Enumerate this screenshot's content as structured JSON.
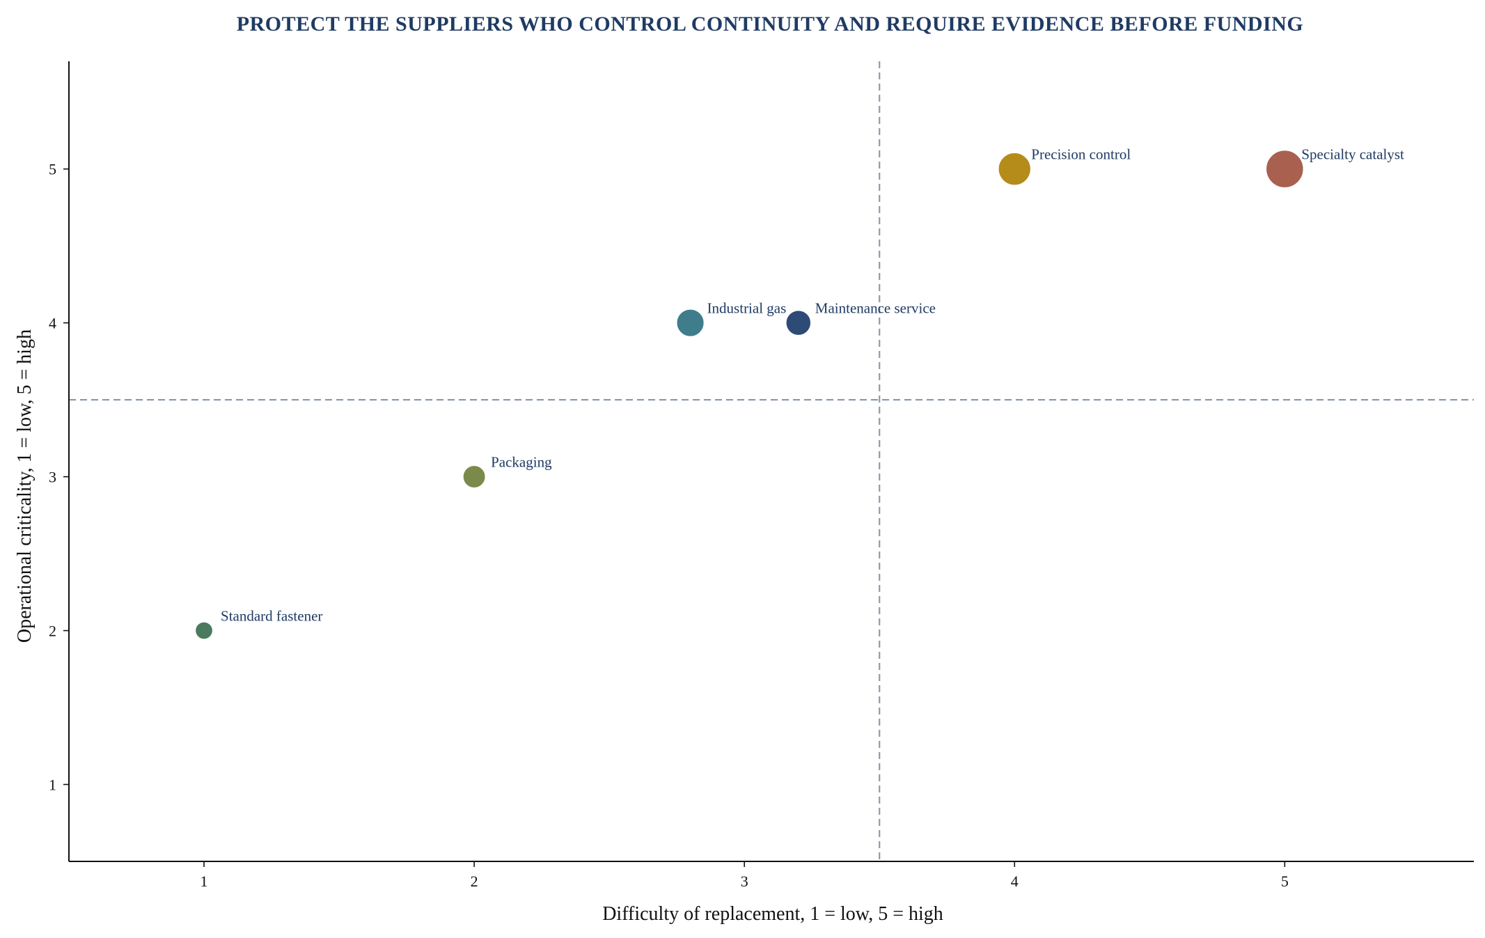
{
  "chart_data": {
    "type": "scatter",
    "title": "PROTECT THE SUPPLIERS WHO CONTROL CONTINUITY AND REQUIRE EVIDENCE BEFORE FUNDING",
    "xlabel": "Difficulty of replacement, 1 = low, 5 = high",
    "ylabel": "Operational criticality, 1 = low, 5 = high",
    "xlim": [
      0.5,
      5.7
    ],
    "ylim": [
      0.5,
      5.7
    ],
    "xticks": [
      1,
      2,
      3,
      4,
      5
    ],
    "yticks": [
      1,
      2,
      3,
      4,
      5
    ],
    "x_threshold": 3.5,
    "y_threshold": 3.5,
    "grid": false,
    "colors": {
      "title": "#1f3b63",
      "label": "#1f3b63",
      "axis": "#111111",
      "threshold": "#8d9aab"
    },
    "points": [
      {
        "name": "Standard fastener",
        "x": 1.0,
        "y": 2.0,
        "size": 1,
        "color": "#4a7a5f"
      },
      {
        "name": "Packaging",
        "x": 2.0,
        "y": 3.0,
        "size": 2,
        "color": "#7b8a4a"
      },
      {
        "name": "Industrial gas",
        "x": 2.8,
        "y": 4.0,
        "size": 3,
        "color": "#3f7d8c"
      },
      {
        "name": "Maintenance service",
        "x": 3.2,
        "y": 4.0,
        "size": 2.5,
        "color": "#2e4a76"
      },
      {
        "name": "Precision control",
        "x": 4.0,
        "y": 5.0,
        "size": 4,
        "color": "#b58b1a"
      },
      {
        "name": "Specialty catalyst",
        "x": 5.0,
        "y": 5.0,
        "size": 5,
        "color": "#a9604f"
      }
    ]
  }
}
